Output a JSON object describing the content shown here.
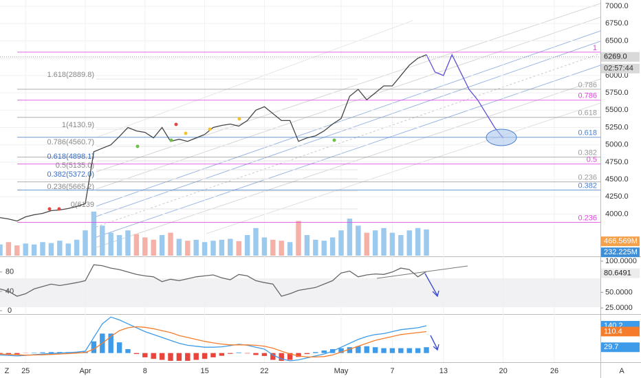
{
  "chart_data": [
    {
      "type": "line",
      "x": [
        -3,
        -2,
        -1,
        0,
        1,
        2,
        3,
        4,
        5,
        6,
        7,
        8,
        9,
        10,
        11,
        12,
        13,
        14,
        15,
        16,
        17,
        18,
        19,
        20,
        21,
        22,
        23,
        24,
        25,
        26,
        27,
        28,
        29,
        30,
        31,
        32,
        33,
        34,
        35,
        36,
        37,
        38,
        39,
        40,
        41,
        42,
        43,
        44,
        45,
        46,
        47,
        48,
        49,
        50,
        51,
        52,
        53,
        54,
        55,
        56
      ],
      "xlim": [
        -3,
        67.4
      ],
      "xticks": [
        {
          "value": 0,
          "label": "25"
        },
        {
          "value": 7,
          "label": "Apr"
        },
        {
          "value": 14,
          "label": "8"
        },
        {
          "value": 21,
          "label": "15"
        },
        {
          "value": 28,
          "label": "22"
        },
        {
          "value": 37,
          "label": "May"
        },
        {
          "value": 43,
          "label": "7"
        },
        {
          "value": 49,
          "label": "13"
        },
        {
          "value": 56,
          "label": "20"
        },
        {
          "value": 62,
          "label": "26"
        }
      ],
      "ylim": [
        3400,
        7090
      ],
      "yticks": [
        {
          "value": 7000,
          "label": "7000.0"
        },
        {
          "value": 6750,
          "label": "6750.0"
        },
        {
          "value": 6500,
          "label": "6500.0"
        },
        {
          "value": 6250,
          "label": "6250.0"
        },
        {
          "value": 6000,
          "label": "6000.0"
        },
        {
          "value": 5750,
          "label": "5750.0"
        },
        {
          "value": 5500,
          "label": "5500.0"
        },
        {
          "value": 5250,
          "label": "5250.0"
        },
        {
          "value": 5000,
          "label": "5000.0"
        },
        {
          "value": 4750,
          "label": "4750.0"
        },
        {
          "value": 4500,
          "label": "4500.0"
        },
        {
          "value": 4250,
          "label": "4250.0"
        },
        {
          "value": 4000,
          "label": "4000.0"
        }
      ],
      "grid": true,
      "series": [
        {
          "color": "#444444",
          "values": [
            3950,
            3930,
            3900,
            3960,
            3990,
            4010,
            4050,
            4060,
            4080,
            4110,
            4150,
            4900,
            4950,
            5000,
            5120,
            5250,
            5200,
            5180,
            5100,
            5250,
            5050,
            5080,
            5050,
            5100,
            5150,
            5250,
            5280,
            5300,
            5270,
            5350,
            5500,
            5550,
            5450,
            5350,
            5350,
            5050,
            5100,
            5130,
            5200,
            5300,
            5380,
            5700,
            5800,
            5650,
            5750,
            5850,
            5850,
            6000,
            6150,
            6250,
            6300,
            null,
            null,
            null,
            null,
            null,
            null,
            null,
            null,
            null
          ]
        },
        {
          "color": "#5b4fd8",
          "values": [
            null,
            null,
            null,
            null,
            null,
            null,
            null,
            null,
            null,
            null,
            null,
            null,
            null,
            null,
            null,
            null,
            null,
            null,
            null,
            null,
            null,
            null,
            null,
            null,
            null,
            null,
            null,
            null,
            null,
            null,
            null,
            null,
            null,
            null,
            null,
            null,
            null,
            null,
            null,
            null,
            null,
            null,
            null,
            null,
            null,
            null,
            null,
            null,
            null,
            null,
            6300,
            6050,
            6000,
            6300,
            6050,
            5800,
            5650,
            5450,
            5250,
            5100
          ]
        }
      ],
      "last_price": {
        "value": 6269,
        "label": "6269.0"
      },
      "countdown": "02:57:44",
      "fib_levels": [
        {
          "ratio": 1,
          "price": 6337,
          "color": "#e040e0"
        },
        {
          "ratio": 0.786,
          "price": 5802,
          "color": "#9a9a9a"
        },
        {
          "ratio": 0.786,
          "price": 5644,
          "color": "#e040e0"
        },
        {
          "ratio": 0.618,
          "price": 5396,
          "color": "#9a9a9a"
        },
        {
          "ratio": 0.618,
          "price": 5109,
          "color": "#4a7fd0"
        },
        {
          "ratio": 0.382,
          "price": 4822,
          "color": "#9a9a9a"
        },
        {
          "ratio": 0.5,
          "price": 4723,
          "color": "#e040e0"
        },
        {
          "ratio": 0.236,
          "price": 4465,
          "color": "#9a9a9a"
        },
        {
          "ratio": 0.382,
          "price": 4347,
          "color": "#4a7fd0"
        },
        {
          "ratio": 0.236,
          "price": 3881,
          "color": "#e040e0"
        }
      ],
      "fib_left_labels": [
        {
          "text": "1.618(2889.8)",
          "color": "#888888"
        },
        {
          "text": "1(4130.9)",
          "color": "#888888"
        },
        {
          "text": "0.786(4560.7)",
          "color": "#888888"
        },
        {
          "text": "0.618(4898.1)",
          "color": "#3b6fc4"
        },
        {
          "text": "0.5(5135.0)",
          "color": "#888888"
        },
        {
          "text": "0.382(5372.0)",
          "color": "#3b6fc4"
        },
        {
          "text": "0.236(5665.2)",
          "color": "#888888"
        },
        {
          "text": "0(6139",
          "color": "#888888"
        }
      ],
      "volume": {
        "ylim": [
          161,
          5608
        ],
        "up_color": "#9ccaee",
        "down_color": "#f5b1a8",
        "values": [
          400,
          450,
          380,
          420,
          400,
          450,
          430,
          480,
          420,
          500,
          700,
          1100,
          800,
          650,
          600,
          700,
          620,
          550,
          500,
          600,
          650,
          520,
          480,
          500,
          450,
          480,
          500,
          520,
          470,
          600,
          750,
          550,
          500,
          480,
          450,
          900,
          600,
          500,
          480,
          550,
          700,
          950,
          800,
          650,
          700,
          750,
          650,
          600,
          700,
          750,
          720,
          null,
          null,
          null,
          null,
          null,
          null,
          null,
          null,
          null
        ],
        "badges": [
          {
            "value": 466.569,
            "label": "466.569M",
            "color": "#f5a04a"
          },
          {
            "value": 232.225,
            "label": "232.225M",
            "color": "#3f8fd8"
          }
        ]
      }
    },
    {
      "type": "line",
      "ylim": [
        -7,
        109.5
      ],
      "yticks": [
        0,
        40,
        80
      ],
      "y2lim": [
        15.2,
        105.4
      ],
      "y2ticks": [
        {
          "value": 100,
          "label": "100.0000"
        },
        {
          "value": 50,
          "label": "50.0000"
        },
        {
          "value": 25,
          "label": "25.0000"
        }
      ],
      "last": 80.6491,
      "series": [
        {
          "color": "#666666",
          "values": [
            45,
            40,
            30,
            35,
            45,
            50,
            55,
            52,
            55,
            58,
            62,
            95,
            93,
            88,
            85,
            80,
            75,
            72,
            70,
            60,
            65,
            62,
            66,
            70,
            72,
            74,
            68,
            64,
            75,
            72,
            62,
            58,
            55,
            30,
            35,
            42,
            45,
            48,
            55,
            62,
            78,
            82,
            70,
            74,
            76,
            75,
            80,
            88,
            85,
            70,
            81,
            null,
            null,
            null,
            null,
            null,
            null,
            null,
            null,
            null
          ]
        }
      ]
    },
    {
      "type": "line",
      "ylim": [
        -47,
        193
      ],
      "series": [
        {
          "color": "#3d9be9",
          "last": 140.2,
          "values": [
            -10,
            -12,
            -15,
            -12,
            -8,
            -5,
            -2,
            0,
            2,
            5,
            10,
            80,
            150,
            185,
            170,
            150,
            130,
            110,
            95,
            80,
            65,
            50,
            40,
            35,
            30,
            30,
            32,
            38,
            45,
            40,
            30,
            20,
            -10,
            -30,
            -40,
            -35,
            -25,
            -15,
            -5,
            10,
            30,
            50,
            70,
            85,
            95,
            100,
            110,
            120,
            125,
            130,
            140,
            null,
            null,
            null,
            null,
            null,
            null,
            null,
            null,
            null
          ]
        },
        {
          "color": "#f57c2a",
          "last": 110.4,
          "values": [
            -5,
            -7,
            -9,
            -11,
            -10,
            -9,
            -7,
            -5,
            -3,
            0,
            3,
            20,
            50,
            85,
            115,
            130,
            135,
            132,
            125,
            115,
            105,
            90,
            80,
            70,
            60,
            52,
            46,
            42,
            42,
            42,
            40,
            35,
            25,
            10,
            -5,
            -15,
            -20,
            -20,
            -18,
            -10,
            5,
            20,
            35,
            50,
            65,
            75,
            85,
            95,
            100,
            105,
            110,
            null,
            null,
            null,
            null,
            null,
            null,
            null,
            null,
            null
          ]
        }
      ],
      "histogram": {
        "up_color": "#3d9be9",
        "down_color": "#e8463c",
        "last": 29.7,
        "values": [
          -5,
          -5,
          -6,
          -1,
          2,
          4,
          5,
          5,
          5,
          5,
          7,
          60,
          100,
          100,
          55,
          20,
          -5,
          -22,
          -30,
          -35,
          -40,
          -40,
          -40,
          -35,
          -30,
          -22,
          -14,
          -4,
          3,
          -2,
          -10,
          -15,
          -35,
          -40,
          -35,
          -20,
          -5,
          5,
          13,
          20,
          25,
          30,
          35,
          35,
          30,
          25,
          25,
          25,
          25,
          25,
          30,
          null,
          null,
          null,
          null,
          null,
          null,
          null,
          null,
          null
        ]
      }
    }
  ],
  "corner_left": "Z",
  "corner_right": "A"
}
